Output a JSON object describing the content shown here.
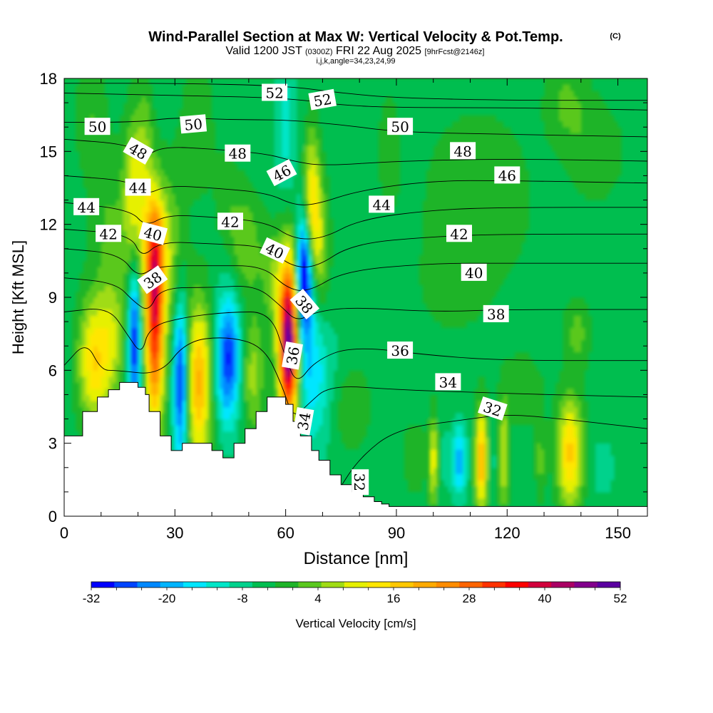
{
  "chart_data": {
    "type": "heatmap",
    "title": "Wind-Parallel Section at Max W: Vertical Velocity & Pot.Temp.",
    "title_mark": "(C)",
    "subtitle_valid": "Valid 1200 JST",
    "subtitle_utc": "(0300Z)",
    "subtitle_date": "FRI 22 Aug 2025",
    "subtitle_fcst": "[9hrFcst@2146z]",
    "subtitle_ijk": "i,j,k,angle=34,23,24,99",
    "xlabel": "Distance [nm]",
    "ylabel": "Height [Kft MSL]",
    "xlim": [
      0,
      158
    ],
    "ylim": [
      0,
      18
    ],
    "xticks": [
      "0",
      "30",
      "60",
      "90",
      "120",
      "150"
    ],
    "xtick_values": [
      0,
      30,
      60,
      90,
      120,
      150
    ],
    "yticks": [
      "0",
      "3",
      "6",
      "9",
      "12",
      "15",
      "18"
    ],
    "ytick_values": [
      0,
      3,
      6,
      9,
      12,
      15,
      18
    ],
    "colorbar": {
      "label": "Vertical Velocity [cm/s]",
      "min": -32,
      "max": 52,
      "step": 4,
      "tick_labels": [
        "-32",
        "-20",
        "-8",
        "4",
        "16",
        "28",
        "40",
        "52"
      ],
      "tick_values": [
        -32,
        -20,
        -8,
        4,
        16,
        28,
        40,
        52
      ],
      "colors": [
        "#0000ff",
        "#0044ff",
        "#0088ff",
        "#00b4ff",
        "#00e6ff",
        "#00e6c8",
        "#00d28c",
        "#00be50",
        "#1eb428",
        "#5ac81e",
        "#a0dc14",
        "#e6f000",
        "#ffe600",
        "#ffc800",
        "#ffaa00",
        "#ff8c00",
        "#ff6400",
        "#ff3200",
        "#ff0000",
        "#d2003c",
        "#aa0064",
        "#82008c",
        "#5a00a0"
      ]
    },
    "background_value": -2,
    "terrain_height_kft": [
      [
        0,
        3.3
      ],
      [
        5,
        4.3
      ],
      [
        9,
        4.9
      ],
      [
        12,
        5.2
      ],
      [
        15,
        5.5
      ],
      [
        19,
        5.5
      ],
      [
        20,
        5.3
      ],
      [
        22,
        5.0
      ],
      [
        23,
        4.3
      ],
      [
        26,
        3.3
      ],
      [
        29,
        2.7
      ],
      [
        32,
        3.0
      ],
      [
        37,
        3.0
      ],
      [
        40,
        2.7
      ],
      [
        43,
        2.4
      ],
      [
        45,
        2.4
      ],
      [
        46,
        3.0
      ],
      [
        49,
        3.6
      ],
      [
        52,
        4.3
      ],
      [
        55,
        4.9
      ],
      [
        58,
        4.9
      ],
      [
        60,
        4.6
      ],
      [
        62,
        3.9
      ],
      [
        64,
        3.3
      ],
      [
        67,
        2.7
      ],
      [
        69,
        2.3
      ],
      [
        72,
        1.7
      ],
      [
        75,
        1.3
      ],
      [
        78,
        1.0
      ],
      [
        81,
        0.8
      ],
      [
        84,
        0.6
      ],
      [
        86,
        0.5
      ],
      [
        88,
        0.4
      ],
      [
        158,
        0.4
      ]
    ],
    "w_cells": [
      {
        "x": 8,
        "y": 6.4,
        "sx": 3.0,
        "sy": 1.8,
        "w": 20
      },
      {
        "x": 13,
        "y": 7.5,
        "sx": 2.5,
        "sy": 2.0,
        "w": 10
      },
      {
        "x": 19,
        "y": 7.3,
        "sx": 1.2,
        "sy": 2.3,
        "w": -32
      },
      {
        "x": 19,
        "y": 12.8,
        "sx": 2.0,
        "sy": 2.5,
        "w": 16
      },
      {
        "x": 22,
        "y": 15.2,
        "sx": 1.5,
        "sy": 2.0,
        "w": 6
      },
      {
        "x": 24.5,
        "y": 8.0,
        "sx": 1.8,
        "sy": 3.0,
        "w": 42
      },
      {
        "x": 24.5,
        "y": 11.0,
        "sx": 2.0,
        "sy": 1.6,
        "w": 18
      },
      {
        "x": 29,
        "y": 10.8,
        "sx": 2.5,
        "sy": 2.5,
        "w": 8
      },
      {
        "x": 31.5,
        "y": 5.6,
        "sx": 1.3,
        "sy": 2.3,
        "w": -32
      },
      {
        "x": 36.5,
        "y": 5.5,
        "sx": 2.3,
        "sy": 2.3,
        "w": 26
      },
      {
        "x": 44.5,
        "y": 6.5,
        "sx": 2.3,
        "sy": 1.8,
        "w": -30
      },
      {
        "x": 51,
        "y": 5.8,
        "sx": 2.3,
        "sy": 1.8,
        "w": 10
      },
      {
        "x": 49,
        "y": 11.2,
        "sx": 3.0,
        "sy": 1.5,
        "w": 8
      },
      {
        "x": 57,
        "y": 9.8,
        "sx": 2.5,
        "sy": 1.5,
        "w": 8
      },
      {
        "x": 61,
        "y": 7.5,
        "sx": 1.8,
        "sy": 2.5,
        "w": 44
      },
      {
        "x": 60.5,
        "y": 6.6,
        "sx": 2.0,
        "sy": 1.8,
        "w": 20
      },
      {
        "x": 65,
        "y": 10.0,
        "sx": 1.4,
        "sy": 1.6,
        "w": -32
      },
      {
        "x": 66,
        "y": 8.0,
        "sx": 3.0,
        "sy": 3.0,
        "w": -16
      },
      {
        "x": 67,
        "y": 13.0,
        "sx": 1.6,
        "sy": 2.0,
        "w": 18
      },
      {
        "x": 69,
        "y": 10.8,
        "sx": 2.0,
        "sy": 2.0,
        "w": 14
      },
      {
        "x": 70,
        "y": 5.2,
        "sx": 3.5,
        "sy": 1.8,
        "w": -10
      },
      {
        "x": 60,
        "y": 16.2,
        "sx": 2.0,
        "sy": 2.5,
        "w": -10
      },
      {
        "x": 76,
        "y": 4.5,
        "sx": 5.0,
        "sy": 1.3,
        "w": 4
      },
      {
        "x": 95,
        "y": 2.4,
        "sx": 3.0,
        "sy": 1.3,
        "w": 2
      },
      {
        "x": 100,
        "y": 2.3,
        "sx": 0.8,
        "sy": 1.3,
        "w": 16
      },
      {
        "x": 103,
        "y": 2.3,
        "sx": 0.8,
        "sy": 1.0,
        "w": -6
      },
      {
        "x": 107,
        "y": 2.3,
        "sx": 1.4,
        "sy": 1.0,
        "w": -20
      },
      {
        "x": 113,
        "y": 2.3,
        "sx": 1.2,
        "sy": 1.5,
        "w": 26
      },
      {
        "x": 116,
        "y": 2.2,
        "sx": 0.8,
        "sy": 1.0,
        "w": -6
      },
      {
        "x": 119,
        "y": 2.5,
        "sx": 1.0,
        "sy": 1.5,
        "w": 14
      },
      {
        "x": 129,
        "y": 2.3,
        "sx": 1.0,
        "sy": 1.1,
        "w": 6
      },
      {
        "x": 137,
        "y": 2.6,
        "sx": 2.5,
        "sy": 1.6,
        "w": 22
      },
      {
        "x": 139,
        "y": 7.5,
        "sx": 2.5,
        "sy": 1.0,
        "w": 6
      },
      {
        "x": 146,
        "y": 2.0,
        "sx": 2.5,
        "sy": 1.0,
        "w": -6
      },
      {
        "x": 124,
        "y": 5.2,
        "sx": 4.0,
        "sy": 1.0,
        "w": 4
      },
      {
        "x": 112,
        "y": 13.0,
        "sx": 10,
        "sy": 2.5,
        "w": 4
      },
      {
        "x": 105,
        "y": 9.5,
        "sx": 6,
        "sy": 1.3,
        "w": 2
      },
      {
        "x": 136,
        "y": 17.0,
        "sx": 4.0,
        "sy": 1.2,
        "w": 5
      },
      {
        "x": 144,
        "y": 15.0,
        "sx": 5.0,
        "sy": 1.4,
        "w": 4
      },
      {
        "x": 88,
        "y": 15.0,
        "sx": 2.0,
        "sy": 1.5,
        "w": 4
      },
      {
        "x": 12,
        "y": 12.5,
        "sx": 4.0,
        "sy": 2.0,
        "w": 4
      },
      {
        "x": 7,
        "y": 16.5,
        "sx": 3.0,
        "sy": 1.5,
        "w": 4
      },
      {
        "x": 36,
        "y": 16.0,
        "sx": 3.0,
        "sy": 2.0,
        "w": 4
      },
      {
        "x": 44,
        "y": 13.2,
        "sx": 2.5,
        "sy": 1.5,
        "w": 2
      }
    ],
    "theta_contours": [
      {
        "label": "52",
        "points": [
          [
            0,
            17.8
          ],
          [
            30,
            17.8
          ],
          [
            60,
            17.7
          ],
          [
            75,
            17.4
          ],
          [
            90,
            17.2
          ],
          [
            120,
            17.1
          ],
          [
            158,
            17.1
          ]
        ]
      },
      {
        "label": "52",
        "points": [
          [
            0,
            17.4
          ],
          [
            30,
            17.3
          ],
          [
            60,
            17.2
          ],
          [
            75,
            16.9
          ],
          [
            90,
            16.8
          ],
          [
            120,
            16.8
          ],
          [
            158,
            16.7
          ]
        ]
      },
      {
        "label": "50",
        "points": [
          [
            0,
            16.2
          ],
          [
            20,
            16.2
          ],
          [
            30,
            16.4
          ],
          [
            45,
            16.3
          ],
          [
            60,
            16.3
          ],
          [
            75,
            16.1
          ],
          [
            90,
            15.8
          ],
          [
            120,
            15.7
          ],
          [
            158,
            15.6
          ]
        ]
      },
      {
        "label": "48",
        "points": [
          [
            0,
            15.5
          ],
          [
            17,
            15.3
          ],
          [
            22,
            14.8
          ],
          [
            27,
            15.2
          ],
          [
            40,
            15.1
          ],
          [
            55,
            14.9
          ],
          [
            62,
            14.6
          ],
          [
            70,
            14.4
          ],
          [
            90,
            14.6
          ],
          [
            120,
            14.7
          ],
          [
            158,
            14.6
          ]
        ]
      },
      {
        "label": "46",
        "points": [
          [
            0,
            14.0
          ],
          [
            18,
            13.8
          ],
          [
            22,
            13.2
          ],
          [
            28,
            13.6
          ],
          [
            40,
            13.5
          ],
          [
            55,
            13.3
          ],
          [
            62,
            12.8
          ],
          [
            68,
            12.8
          ],
          [
            80,
            13.4
          ],
          [
            100,
            13.8
          ],
          [
            120,
            13.8
          ],
          [
            158,
            13.7
          ]
        ]
      },
      {
        "label": "44",
        "points": [
          [
            0,
            12.9
          ],
          [
            18,
            12.6
          ],
          [
            22,
            11.9
          ],
          [
            28,
            12.4
          ],
          [
            40,
            12.3
          ],
          [
            55,
            12.1
          ],
          [
            62,
            11.4
          ],
          [
            70,
            11.4
          ],
          [
            80,
            12.2
          ],
          [
            100,
            12.6
          ],
          [
            120,
            12.7
          ],
          [
            158,
            12.7
          ]
        ]
      },
      {
        "label": "42",
        "points": [
          [
            0,
            11.8
          ],
          [
            18,
            11.6
          ],
          [
            21,
            10.6
          ],
          [
            26,
            11.3
          ],
          [
            40,
            11.2
          ],
          [
            55,
            11.1
          ],
          [
            61,
            10.3
          ],
          [
            68,
            10.2
          ],
          [
            78,
            11.2
          ],
          [
            100,
            11.5
          ],
          [
            120,
            11.6
          ],
          [
            158,
            11.6
          ]
        ]
      },
      {
        "label": "40",
        "points": [
          [
            0,
            11.0
          ],
          [
            15,
            10.8
          ],
          [
            20,
            9.8
          ],
          [
            25,
            10.3
          ],
          [
            40,
            10.3
          ],
          [
            54,
            10.3
          ],
          [
            60,
            9.4
          ],
          [
            66,
            9.2
          ],
          [
            76,
            10.1
          ],
          [
            100,
            10.4
          ],
          [
            120,
            10.4
          ],
          [
            158,
            10.4
          ]
        ]
      },
      {
        "label": "38",
        "points": [
          [
            0,
            9.8
          ],
          [
            14,
            9.6
          ],
          [
            19,
            8.8
          ],
          [
            23,
            8.4
          ],
          [
            26,
            9.4
          ],
          [
            40,
            9.4
          ],
          [
            52,
            9.5
          ],
          [
            59,
            8.6
          ],
          [
            63,
            8.0
          ],
          [
            68,
            8.4
          ],
          [
            78,
            8.6
          ],
          [
            100,
            8.4
          ],
          [
            120,
            8.5
          ],
          [
            158,
            8.5
          ]
        ]
      },
      {
        "label": "36",
        "points": [
          [
            0,
            8.4
          ],
          [
            12,
            8.6
          ],
          [
            17,
            7.5
          ],
          [
            21,
            6.6
          ],
          [
            23,
            7.8
          ],
          [
            33,
            8.2
          ],
          [
            45,
            8.4
          ],
          [
            56,
            8.4
          ],
          [
            60,
            6.5
          ],
          [
            63,
            5.4
          ],
          [
            68,
            6.4
          ],
          [
            78,
            7.0
          ],
          [
            100,
            6.6
          ],
          [
            120,
            6.4
          ],
          [
            158,
            6.4
          ]
        ]
      },
      {
        "label": "34",
        "points": [
          [
            0,
            6.2
          ],
          [
            6,
            7.2
          ],
          [
            10,
            6.0
          ],
          [
            14,
            6.0
          ],
          [
            26,
            5.8
          ],
          [
            33,
            7.2
          ],
          [
            44,
            7.4
          ],
          [
            54,
            7.0
          ],
          [
            59,
            5.4
          ],
          [
            62,
            4.0
          ],
          [
            66,
            4.6
          ],
          [
            72,
            5.4
          ],
          [
            90,
            5.2
          ],
          [
            110,
            5.1
          ],
          [
            130,
            5.0
          ],
          [
            158,
            4.9
          ]
        ]
      },
      {
        "label": "32",
        "points": [
          [
            74,
            1.0
          ],
          [
            80,
            2.4
          ],
          [
            90,
            3.6
          ],
          [
            110,
            4.0
          ],
          [
            120,
            4.2
          ],
          [
            135,
            4.0
          ],
          [
            158,
            3.6
          ]
        ]
      }
    ],
    "contour_labels": [
      {
        "text": "50",
        "x": 9,
        "y": 16.0,
        "angle": 0
      },
      {
        "text": "50",
        "x": 35,
        "y": 16.1,
        "angle": -5
      },
      {
        "text": "52",
        "x": 57,
        "y": 17.4,
        "angle": 0
      },
      {
        "text": "52",
        "x": 70,
        "y": 17.1,
        "angle": -10
      },
      {
        "text": "50",
        "x": 91,
        "y": 16.0,
        "angle": 0
      },
      {
        "text": "48",
        "x": 20,
        "y": 15.0,
        "angle": 30
      },
      {
        "text": "48",
        "x": 47,
        "y": 14.9,
        "angle": 0
      },
      {
        "text": "48",
        "x": 108,
        "y": 15.0,
        "angle": 0
      },
      {
        "text": "46",
        "x": 59,
        "y": 14.1,
        "angle": -28
      },
      {
        "text": "46",
        "x": 120,
        "y": 14.0,
        "angle": 0
      },
      {
        "text": "44",
        "x": 6,
        "y": 12.7,
        "angle": 0
      },
      {
        "text": "44",
        "x": 20,
        "y": 13.5,
        "angle": 0
      },
      {
        "text": "44",
        "x": 86,
        "y": 12.8,
        "angle": 0
      },
      {
        "text": "42",
        "x": 12,
        "y": 11.6,
        "angle": 0
      },
      {
        "text": "42",
        "x": 45,
        "y": 12.1,
        "angle": 0
      },
      {
        "text": "42",
        "x": 107,
        "y": 11.6,
        "angle": 0
      },
      {
        "text": "40",
        "x": 24,
        "y": 11.6,
        "angle": 15
      },
      {
        "text": "40",
        "x": 57,
        "y": 10.9,
        "angle": 25
      },
      {
        "text": "40",
        "x": 111,
        "y": 10.0,
        "angle": 0
      },
      {
        "text": "38",
        "x": 24,
        "y": 9.7,
        "angle": -35
      },
      {
        "text": "38",
        "x": 65,
        "y": 8.7,
        "angle": 50
      },
      {
        "text": "38",
        "x": 117,
        "y": 8.3,
        "angle": 0
      },
      {
        "text": "36",
        "x": 62,
        "y": 6.6,
        "angle": -80
      },
      {
        "text": "36",
        "x": 91,
        "y": 6.8,
        "angle": 0
      },
      {
        "text": "34",
        "x": 65,
        "y": 3.9,
        "angle": -80
      },
      {
        "text": "34",
        "x": 104,
        "y": 5.5,
        "angle": 0
      },
      {
        "text": "32",
        "x": 116,
        "y": 4.4,
        "angle": 18
      },
      {
        "text": "32",
        "x": 80,
        "y": 1.4,
        "angle": 90
      }
    ]
  }
}
